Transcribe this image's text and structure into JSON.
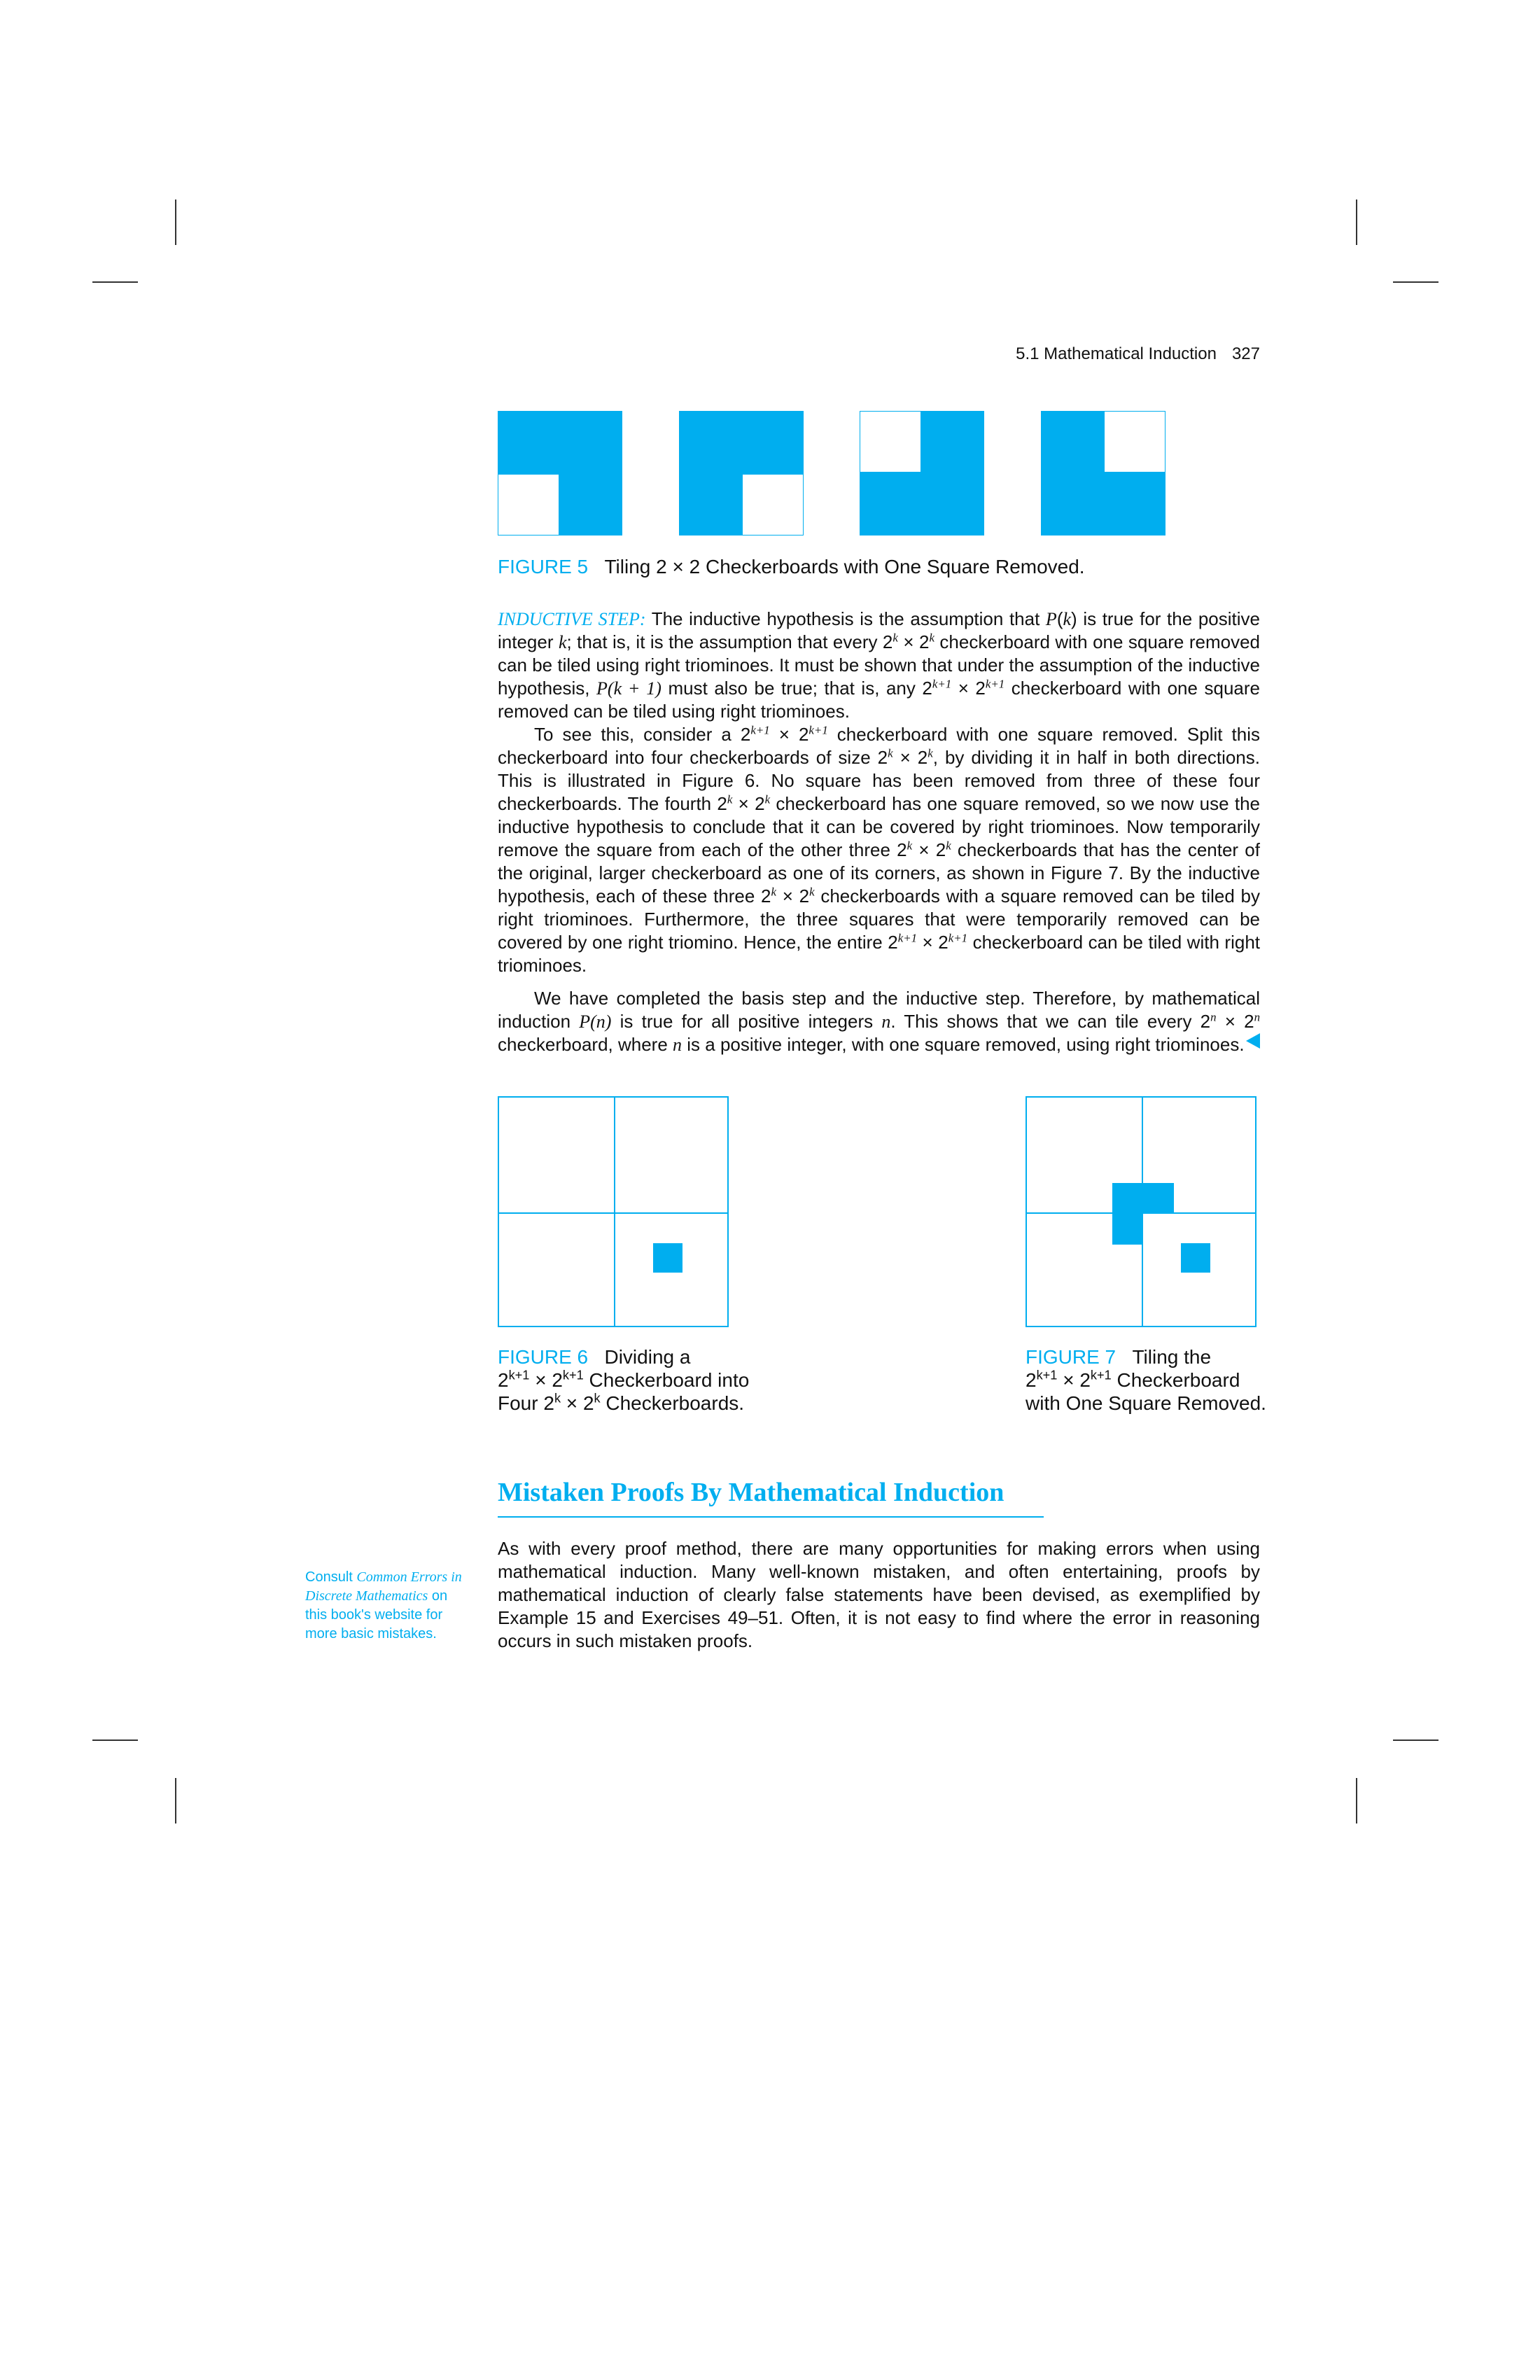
{
  "header": {
    "section": "5.1 Mathematical Induction",
    "page": "327"
  },
  "figure5": {
    "label": "FIGURE 5",
    "caption": "Tiling 2 × 2 Checkerboards with One Square Removed."
  },
  "inductive": {
    "label": "INDUCTIVE STEP:",
    "p1a": "The inductive hypothesis is the assumption that ",
    "P": "P",
    "k": "k",
    "p1b": " is true for the positive integer ",
    "p1c": "; that is, it is the assumption that every 2",
    "p1d": " × 2",
    "p1e": " checkerboard with one square removed can be tiled using right triominoes. It must be shown that under the assumption of the inductive hypothesis, ",
    "Pk1": "P(k + 1)",
    "p1f": " must also be true; that is, any 2",
    "k1": "k+1",
    "p1g": " × 2",
    "p1h": " checkerboard with one square removed can be tiled using right triominoes."
  },
  "para2": {
    "a": "To see this, consider a 2",
    "b": " × 2",
    "c": " checkerboard with one square removed. Split this checkerboard into four checkerboards of size 2",
    "d": " × 2",
    "e": ", by dividing it in half in both directions. This is illustrated in Figure 6. No square has been removed from three of these four checkerboards. The fourth 2",
    "f": " × 2",
    "g": " checkerboard has one square removed, so we now use the inductive hypothesis to conclude that it can be covered by right triominoes. Now temporarily remove the square from each of the other three 2",
    "h": " × 2",
    "i": " checkerboards that has the center of the original, larger checkerboard as one of its corners, as shown in Figure 7. By the inductive hypothesis, each of these three 2",
    "j": " × 2",
    "l": " checkerboards with a square removed can be tiled by right triominoes. Furthermore, the three squares that were temporarily removed can be covered by one right triomino. Hence, the entire 2",
    "n": " × 2",
    "o": " checkerboard can be tiled with right triominoes."
  },
  "para3": {
    "a": "We have completed the basis step and the inductive step. Therefore, by mathematical induction ",
    "Pn": "P(n)",
    "b": " is true for all positive integers ",
    "n": "n",
    "c": ". This shows that we can tile every 2",
    "d": " × 2",
    "e": " checkerboard, where ",
    "f": " is a positive integer, with one square removed, using right triominoes."
  },
  "figure6": {
    "label": "FIGURE 6",
    "line1": "Dividing a",
    "line2a": "2",
    "sup": "k+1",
    "line2b": " × 2",
    "line2c": " Checkerboard into",
    "line3a": "Four 2",
    "supk": "k",
    "line3b": " × 2",
    "line3c": " Checkerboards."
  },
  "figure7": {
    "label": "FIGURE 7",
    "line1": "Tiling the",
    "line2a": "2",
    "sup": "k+1",
    "line2b": " × 2",
    "line2c": " Checkerboard",
    "line3": "with One Square Removed."
  },
  "section": {
    "title": "Mistaken Proofs By Mathematical Induction"
  },
  "margin_note": {
    "a": "Consult ",
    "b": "Common Errors in Discrete Mathematics",
    "c": " on this book's website for more basic mistakes."
  },
  "mistaken_para": "As with every proof method, there are many opportunities for making errors when using mathematical induction. Many well-known mistaken, and often entertaining, proofs by mathematical induction of clearly false statements have been devised, as exemplified by Example 15 and Exercises 49–51. Often, it is not easy to find where the error in reasoning occurs in such mistaken proofs.",
  "colors": {
    "accent": "#00aeef"
  }
}
